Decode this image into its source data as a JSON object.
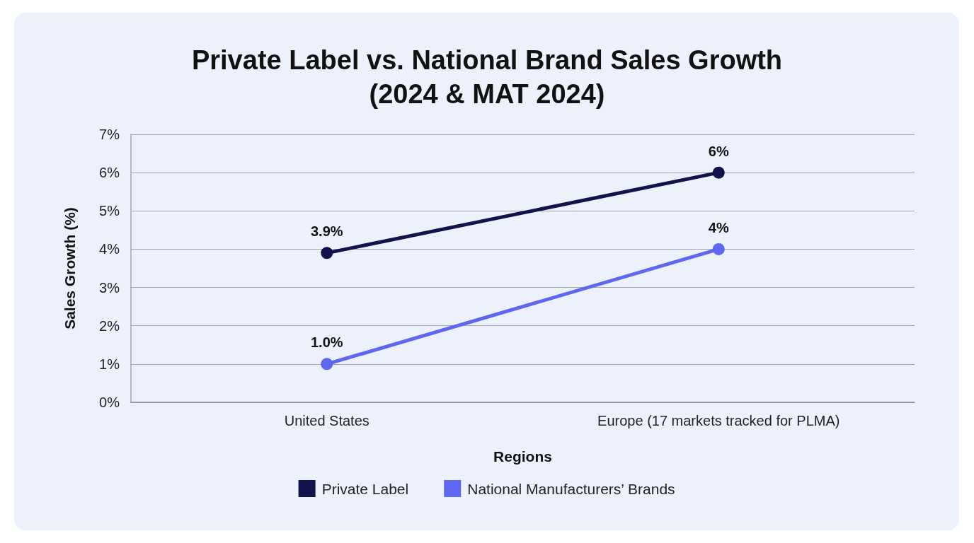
{
  "chart_data": {
    "type": "line",
    "title": "Private Label vs. National Brand Sales Growth\n(2024 & MAT 2024)",
    "xlabel": "Regions",
    "ylabel": "Sales Growth (%)",
    "categories": [
      "United States",
      "Europe (17 markets tracked for PLMA)"
    ],
    "series": [
      {
        "name": "Private Label",
        "color": "#14124b",
        "values": [
          3.9,
          6
        ],
        "value_labels": [
          "3.9%",
          "6%"
        ]
      },
      {
        "name": "National Manufacturers’ Brands",
        "color": "#5f66f0",
        "values": [
          1.0,
          4
        ],
        "value_labels": [
          "1.0%",
          "4%"
        ]
      }
    ],
    "ylim": [
      0,
      7
    ],
    "yticks": [
      {
        "value": 0,
        "label": "0%"
      },
      {
        "value": 1,
        "label": "1%"
      },
      {
        "value": 2,
        "label": "2%"
      },
      {
        "value": 3,
        "label": "3%"
      },
      {
        "value": 4,
        "label": "4%"
      },
      {
        "value": 5,
        "label": "5%"
      },
      {
        "value": 6,
        "label": "6%"
      },
      {
        "value": 7,
        "label": "7%"
      }
    ],
    "grid": "y",
    "legend": "bottom",
    "marker": "circle",
    "line_style": "solid"
  }
}
